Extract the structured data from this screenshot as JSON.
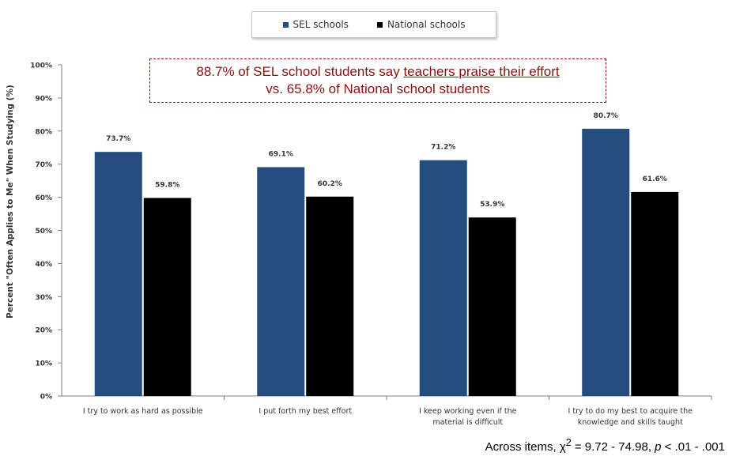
{
  "chart_data": {
    "type": "bar",
    "categories": [
      [
        "I try to work as hard as possible"
      ],
      [
        "I put forth my best effort"
      ],
      [
        "I keep working even if the",
        "material is difficult"
      ],
      [
        "I try to do my best to acquire the",
        "knowledge and skills taught"
      ]
    ],
    "series": [
      {
        "name": "SEL schools",
        "color": "#244c7c",
        "values": [
          73.7,
          69.1,
          71.2,
          80.7
        ],
        "labels": [
          "73.7%",
          "69.1%",
          "71.2%",
          "80.7%"
        ]
      },
      {
        "name": "National schools",
        "color": "#000000",
        "values": [
          59.8,
          60.2,
          53.9,
          61.6
        ],
        "labels": [
          "59.8%",
          "60.2%",
          "53.9%",
          "61.6%"
        ]
      }
    ],
    "ylabel": "Percent \"Often Applies to Me\" When Studying  (%)",
    "ylim": [
      0,
      100
    ],
    "yticks": [
      "0%",
      "10%",
      "20%",
      "30%",
      "40%",
      "50%",
      "60%",
      "70%",
      "80%",
      "90%",
      "100%"
    ],
    "grid": false,
    "legend": "top-center"
  },
  "callout": {
    "line1_a": "88.7% of SEL school students say ",
    "line1_b": "teachers praise their effort",
    "line2": "vs. 65.8% of National school students"
  },
  "footnote": {
    "prefix": "Across items, ",
    "chi": "χ",
    "sup": "2",
    "mid": " = 9.72 - 74.98, ",
    "p": "p",
    "suffix": " < .01 - .001"
  }
}
